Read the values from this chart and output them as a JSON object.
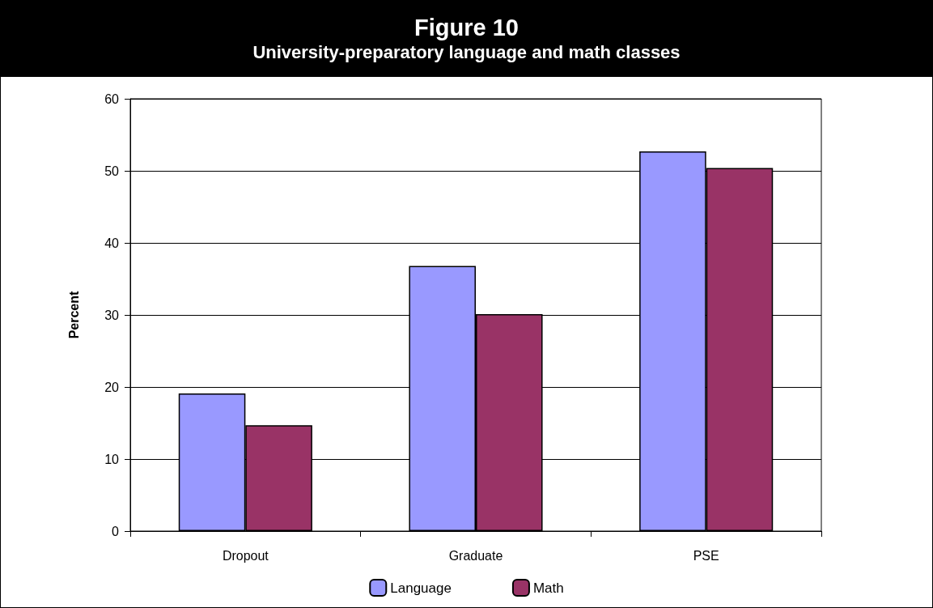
{
  "chart_data": {
    "type": "bar",
    "title": "Figure 10",
    "subtitle": "University-preparatory language and math classes",
    "ylabel": "Percent",
    "categories": [
      "Dropout",
      "Graduate",
      "PSE"
    ],
    "series": [
      {
        "name": "Language",
        "color": "#9999ff",
        "values": [
          19.1,
          36.8,
          52.7
        ]
      },
      {
        "name": "Math",
        "color": "#993366",
        "values": [
          14.7,
          30.1,
          50.4
        ]
      }
    ],
    "ylim": [
      0,
      60
    ],
    "yticks": [
      0,
      10,
      20,
      30,
      40,
      50,
      60
    ],
    "grid": "y",
    "legend": "bottom"
  }
}
